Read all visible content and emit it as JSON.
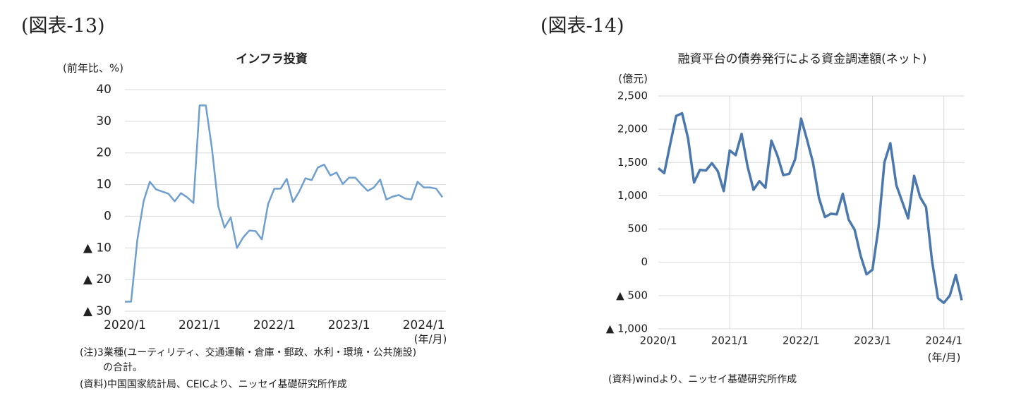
{
  "chart_data": [
    {
      "type": "line",
      "figure_label": "(図表-13)",
      "title": "インフラ投資",
      "y_unit": "(前年比、%)",
      "x_unit": "(年/月)",
      "notes": [
        "(注)3業種(ユーティリティ、交通運輸・倉庫・郵政、水利・環境・公共施設)",
        "の合計。",
        "(資料)中国国家統計局、CEICより、ニッセイ基礎研究所作成"
      ],
      "categories": [
        "2020/1",
        null,
        null,
        null,
        null,
        null,
        null,
        null,
        null,
        null,
        null,
        null,
        "2021/1",
        null,
        null,
        null,
        null,
        null,
        null,
        null,
        null,
        null,
        null,
        null,
        "2022/1",
        null,
        null,
        null,
        null,
        null,
        null,
        null,
        null,
        null,
        null,
        null,
        "2023/1",
        null,
        null,
        null,
        null,
        null,
        null,
        null,
        null,
        null,
        null,
        null,
        "2024/1",
        null,
        null,
        null
      ],
      "series": [
        {
          "color": "#6f9fcf",
          "values": [
            -27,
            -27,
            -7.5,
            4.7,
            10.9,
            8.5,
            7.8,
            7.1,
            4.7,
            7.3,
            6,
            4.2,
            35,
            35,
            21.2,
            3.1,
            -3.6,
            -0.4,
            -10,
            -6.7,
            -4.5,
            -4.7,
            -7.3,
            3.8,
            8.7,
            8.7,
            11.8,
            4.5,
            7.8,
            12,
            11.4,
            15.4,
            16.3,
            12.9,
            13.8,
            10.2,
            12.2,
            12.2,
            10,
            8,
            9.1,
            11.6,
            5.3,
            6.2,
            6.7,
            5.6,
            5.3,
            10.9,
            9.1,
            9.1,
            8.7,
            6
          ]
        }
      ],
      "ylim": [
        -30,
        40
      ],
      "yticks": [
        40,
        30,
        20,
        10,
        0,
        {
          "value": -10,
          "label": "▲ 10"
        },
        {
          "value": -20,
          "label": "▲ 20"
        },
        {
          "value": -30,
          "label": "▲ 30"
        }
      ],
      "grid": true,
      "xgrid": false
    },
    {
      "type": "line",
      "figure_label": "(図表-14)",
      "title": "融資平台の債券発行による資金調達額(ネット)",
      "y_unit": "(億元)",
      "x_unit": "(年/月)",
      "notes": [
        "(資料)windより、ニッセイ基礎研究所作成"
      ],
      "categories": [
        "2020/1",
        null,
        null,
        null,
        null,
        null,
        null,
        null,
        null,
        null,
        null,
        null,
        "2021/1",
        null,
        null,
        null,
        null,
        null,
        null,
        null,
        null,
        null,
        null,
        null,
        "2022/1",
        null,
        null,
        null,
        null,
        null,
        null,
        null,
        null,
        null,
        null,
        null,
        "2023/1",
        null,
        null,
        null,
        null,
        null,
        null,
        null,
        null,
        null,
        null,
        null,
        "2024/1",
        null,
        null,
        null
      ],
      "series": [
        {
          "color": "#4a78ac",
          "values": [
            1415,
            1340,
            1780,
            2200,
            2240,
            1860,
            1200,
            1390,
            1380,
            1490,
            1370,
            1070,
            1680,
            1610,
            1930,
            1440,
            1090,
            1220,
            1120,
            1830,
            1610,
            1310,
            1330,
            1550,
            2160,
            1840,
            1500,
            970,
            680,
            730,
            720,
            1030,
            640,
            490,
            100,
            -180,
            -110,
            520,
            1500,
            1790,
            1160,
            910,
            660,
            1300,
            980,
            830,
            30,
            -540,
            -610,
            -500,
            -190,
            -570
          ]
        }
      ],
      "ylim": [
        -1000,
        2500
      ],
      "yticks": [
        {
          "value": 2500,
          "label": "2,500"
        },
        {
          "value": 2000,
          "label": "2,000"
        },
        {
          "value": 1500,
          "label": "1,500"
        },
        {
          "value": 1000,
          "label": "1,000"
        },
        500,
        0,
        {
          "value": -500,
          "label": "▲ 500"
        },
        {
          "value": -1000,
          "label": "▲ 1,000"
        }
      ],
      "grid": true,
      "xgrid": true
    }
  ]
}
